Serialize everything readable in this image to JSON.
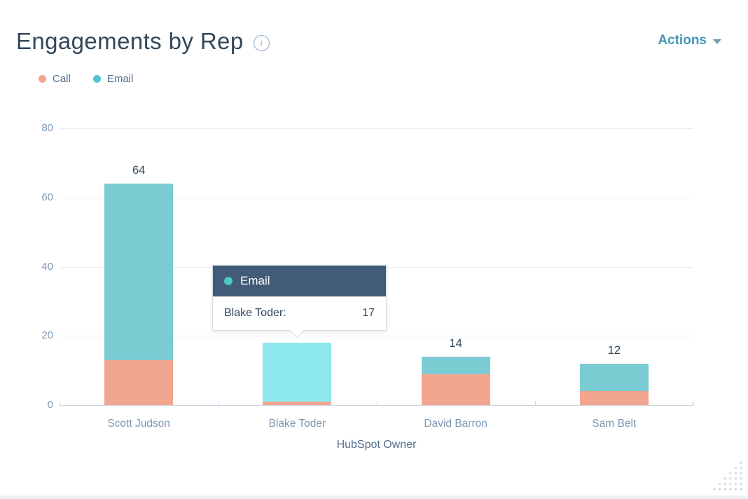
{
  "header": {
    "title": "Engagements by Rep",
    "actions_label": "Actions"
  },
  "legend": {
    "items": [
      {
        "label": "Call",
        "color": "#f2a58f"
      },
      {
        "label": "Email",
        "color": "#4fc4cc"
      }
    ]
  },
  "chart_data": {
    "type": "bar",
    "stacked": true,
    "title": "Engagements by Rep",
    "categories": [
      "Scott Judson",
      "Blake Toder",
      "David Barron",
      "Sam Belt"
    ],
    "series": [
      {
        "name": "Call",
        "color": "#f2a58f",
        "values": [
          13,
          1,
          9,
          4
        ]
      },
      {
        "name": "Email",
        "color": "#7accd2",
        "values": [
          51,
          17,
          5,
          8
        ]
      }
    ],
    "totals": [
      64,
      18,
      14,
      12
    ],
    "total_labels": [
      "64",
      "",
      "14",
      "12"
    ],
    "xlabel": "HubSpot Owner",
    "ylabel": "",
    "ylim": [
      0,
      80
    ],
    "yticks": [
      0,
      20,
      40,
      60,
      80
    ],
    "grid": true,
    "legend_position": "top-left",
    "highlight": {
      "category_index": 1,
      "series": "Email",
      "color": "#8de9ef"
    }
  },
  "tooltip": {
    "series": "Email",
    "dot_color": "#4fc4cc",
    "header_bg": "#425b76",
    "label": "Blake Toder:",
    "value": "17"
  },
  "colors": {
    "title": "#33475b",
    "actions": "#4596b5",
    "axis_labels": "#7c98b6",
    "axis_title": "#516f90",
    "gridline": "#e9eef4",
    "axis_line": "#c9d4e0",
    "dots_decoration": "#d3dce6"
  }
}
